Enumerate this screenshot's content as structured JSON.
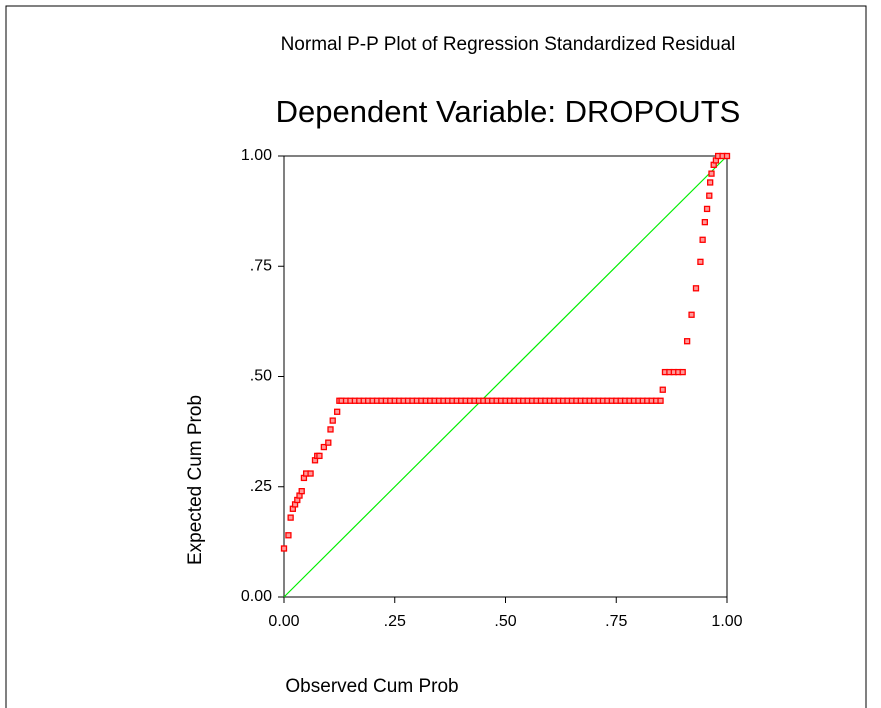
{
  "chart_data": {
    "type": "scatter",
    "title": "Normal P-P Plot of Regression Standardized Residual",
    "subtitle": "Dependent Variable: DROPOUTS",
    "x_label": "Observed Cum Prob",
    "y_label": "Expected Cum Prob",
    "color": "#ff0000",
    "reference_line_color": "#00ee00",
    "xlim": [
      0,
      1
    ],
    "ylim": [
      0,
      1
    ],
    "xticks": [
      {
        "value": 0,
        "label": "0.00"
      },
      {
        "value": 0.25,
        "label": ".25"
      },
      {
        "value": 0.5,
        "label": ".50"
      },
      {
        "value": 0.75,
        "label": ".75"
      },
      {
        "value": 1,
        "label": "1.00"
      }
    ],
    "yticks": [
      {
        "value": 0,
        "label": "0.00"
      },
      {
        "value": 0.25,
        "label": ".25"
      },
      {
        "value": 0.5,
        "label": ".50"
      },
      {
        "value": 0.75,
        "label": ".75"
      },
      {
        "value": 1,
        "label": "1.00"
      }
    ],
    "x": [
      0.0,
      0.01,
      0.015,
      0.02,
      0.025,
      0.03,
      0.035,
      0.04,
      0.045,
      0.05,
      0.06,
      0.07,
      0.075,
      0.08,
      0.09,
      0.1,
      0.105,
      0.11,
      0.12,
      0.125,
      0.13,
      0.14,
      0.15,
      0.16,
      0.17,
      0.18,
      0.19,
      0.2,
      0.21,
      0.22,
      0.23,
      0.24,
      0.25,
      0.26,
      0.27,
      0.28,
      0.29,
      0.3,
      0.31,
      0.32,
      0.33,
      0.34,
      0.35,
      0.36,
      0.37,
      0.38,
      0.39,
      0.4,
      0.41,
      0.42,
      0.43,
      0.44,
      0.45,
      0.46,
      0.47,
      0.48,
      0.49,
      0.5,
      0.51,
      0.52,
      0.53,
      0.54,
      0.55,
      0.56,
      0.57,
      0.58,
      0.59,
      0.6,
      0.61,
      0.62,
      0.63,
      0.64,
      0.65,
      0.66,
      0.67,
      0.68,
      0.69,
      0.7,
      0.71,
      0.72,
      0.73,
      0.74,
      0.75,
      0.76,
      0.77,
      0.78,
      0.79,
      0.8,
      0.81,
      0.82,
      0.83,
      0.84,
      0.85,
      0.855,
      0.86,
      0.87,
      0.88,
      0.89,
      0.9,
      0.91,
      0.92,
      0.93,
      0.94,
      0.945,
      0.95,
      0.955,
      0.96,
      0.962,
      0.965,
      0.97,
      0.975,
      0.98,
      0.99,
      1.0
    ],
    "values": [
      0.11,
      0.14,
      0.18,
      0.2,
      0.21,
      0.22,
      0.23,
      0.24,
      0.27,
      0.28,
      0.28,
      0.31,
      0.32,
      0.32,
      0.34,
      0.35,
      0.38,
      0.4,
      0.42,
      0.445,
      0.445,
      0.445,
      0.445,
      0.445,
      0.445,
      0.445,
      0.445,
      0.445,
      0.445,
      0.445,
      0.445,
      0.445,
      0.445,
      0.445,
      0.445,
      0.445,
      0.445,
      0.445,
      0.445,
      0.445,
      0.445,
      0.445,
      0.445,
      0.445,
      0.445,
      0.445,
      0.445,
      0.445,
      0.445,
      0.445,
      0.445,
      0.445,
      0.445,
      0.445,
      0.445,
      0.445,
      0.445,
      0.445,
      0.445,
      0.445,
      0.445,
      0.445,
      0.445,
      0.445,
      0.445,
      0.445,
      0.445,
      0.445,
      0.445,
      0.445,
      0.445,
      0.445,
      0.445,
      0.445,
      0.445,
      0.445,
      0.445,
      0.445,
      0.445,
      0.445,
      0.445,
      0.445,
      0.445,
      0.445,
      0.445,
      0.445,
      0.445,
      0.445,
      0.445,
      0.445,
      0.445,
      0.445,
      0.445,
      0.47,
      0.51,
      0.51,
      0.51,
      0.51,
      0.51,
      0.58,
      0.64,
      0.7,
      0.76,
      0.81,
      0.85,
      0.88,
      0.91,
      0.94,
      0.96,
      0.98,
      0.99,
      1.0,
      1.0,
      1.0
    ]
  }
}
